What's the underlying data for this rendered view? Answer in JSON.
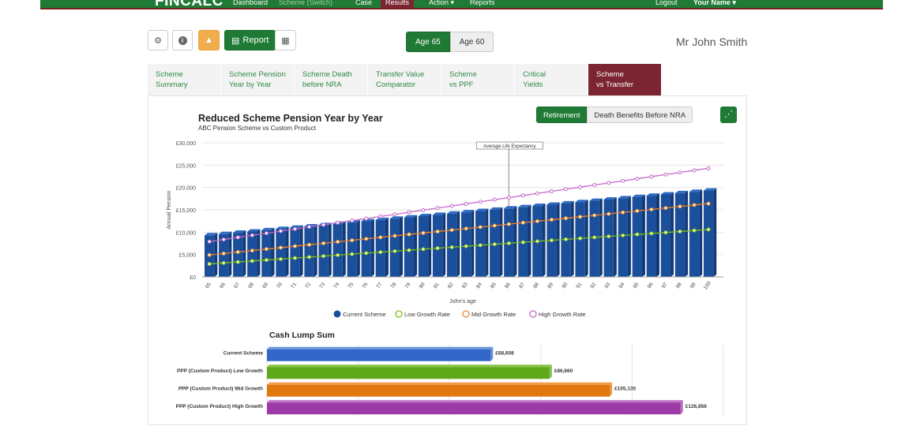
{
  "topnav": {
    "brand": "FINCALC",
    "items": [
      {
        "label": "Dashboard",
        "state": "normal"
      },
      {
        "label": "Scheme (Switch)",
        "state": "muted"
      },
      {
        "label": "Case",
        "state": "normal"
      },
      {
        "label": "Results",
        "state": "active"
      },
      {
        "label": "Action ▾",
        "state": "normal"
      },
      {
        "label": "Reports",
        "state": "normal"
      },
      {
        "label": "Logout",
        "state": "normal"
      },
      {
        "label": "Your Name ▾",
        "state": "normal"
      }
    ]
  },
  "toolbar": {
    "settings_icon": "gear-icon",
    "info_icon": "info-icon",
    "warning_icon": "warning-icon",
    "report_label": "Report",
    "report_icon": "pdf-file-icon",
    "calculator_icon": "calculator-icon"
  },
  "age_toggle": {
    "selected": "Age 65",
    "other": "Age 60"
  },
  "client_name": "Mr John Smith",
  "tabs": [
    {
      "line1": "Scheme",
      "line2": "Summary",
      "active": false
    },
    {
      "line1": "Scheme Pension",
      "line2": "Year by Year",
      "active": false
    },
    {
      "line1": "Scheme Death",
      "line2": "before NRA",
      "active": false
    },
    {
      "line1": "Transfer Value",
      "line2": "Comparator",
      "active": false
    },
    {
      "line1": "Scheme",
      "line2": "vs PPF",
      "active": false
    },
    {
      "line1": "Critical",
      "line2": "Yields",
      "active": false
    },
    {
      "line1": "Scheme",
      "line2": "vs Transfer",
      "active": true
    }
  ],
  "chart_toggle": {
    "selected": "Retirement",
    "other": "Death Benefits Before NRA"
  },
  "colors": {
    "brand_green": "#1e7a34",
    "active_tab": "#7a2531",
    "bar_blue": "#1b4f9c",
    "low": "#7cc217",
    "mid": "#f0852d",
    "high": "#c26bc9"
  },
  "chart_data": [
    {
      "type": "bar+line",
      "title": "Reduced Scheme Pension Year by Year",
      "subtitle": "ABC Pension Scheme vs Custom Product",
      "xlabel": "John's age",
      "ylabel": "Annual Pension",
      "ylim": [
        0,
        30000
      ],
      "yticks": [
        "£0",
        "£5,000",
        "£10,000",
        "£15,000",
        "£20,000",
        "£25,000",
        "£30,000"
      ],
      "grid": true,
      "annotation": {
        "label": "Average Life Expectancy",
        "x": 86
      },
      "categories": [
        65,
        66,
        67,
        68,
        69,
        70,
        71,
        72,
        73,
        74,
        75,
        76,
        77,
        78,
        79,
        80,
        81,
        82,
        83,
        84,
        85,
        86,
        87,
        88,
        89,
        90,
        91,
        92,
        93,
        94,
        95,
        96,
        97,
        98,
        99,
        100
      ],
      "series": [
        {
          "name": "Current Scheme",
          "kind": "bar",
          "start": 9300,
          "end": 19300
        },
        {
          "name": "Low Growth Rate",
          "kind": "line",
          "start": 2900,
          "end": 10600
        },
        {
          "name": "Mid Growth Rate",
          "kind": "line",
          "start": 4900,
          "end": 16400
        },
        {
          "name": "High Growth Rate",
          "kind": "line",
          "start": 7900,
          "end": 24300
        }
      ],
      "legend": [
        "Current Scheme",
        "Low Growth Rate",
        "Mid Growth Rate",
        "High Growth Rate"
      ]
    },
    {
      "type": "bar",
      "orientation": "horizontal",
      "title": "Cash Lump Sum",
      "categories": [
        "Current Scheme",
        "PPP (Custom Product) Low Growth",
        "PPP (Custom Product) Mid Growth",
        "PPP (Custom Product) High Growth"
      ],
      "values": [
        68608,
        86660,
        105135,
        126856
      ],
      "labels": [
        "£68,608",
        "£86,660",
        "£105,135",
        "£126,856"
      ],
      "xlim": [
        0,
        140000
      ]
    }
  ]
}
